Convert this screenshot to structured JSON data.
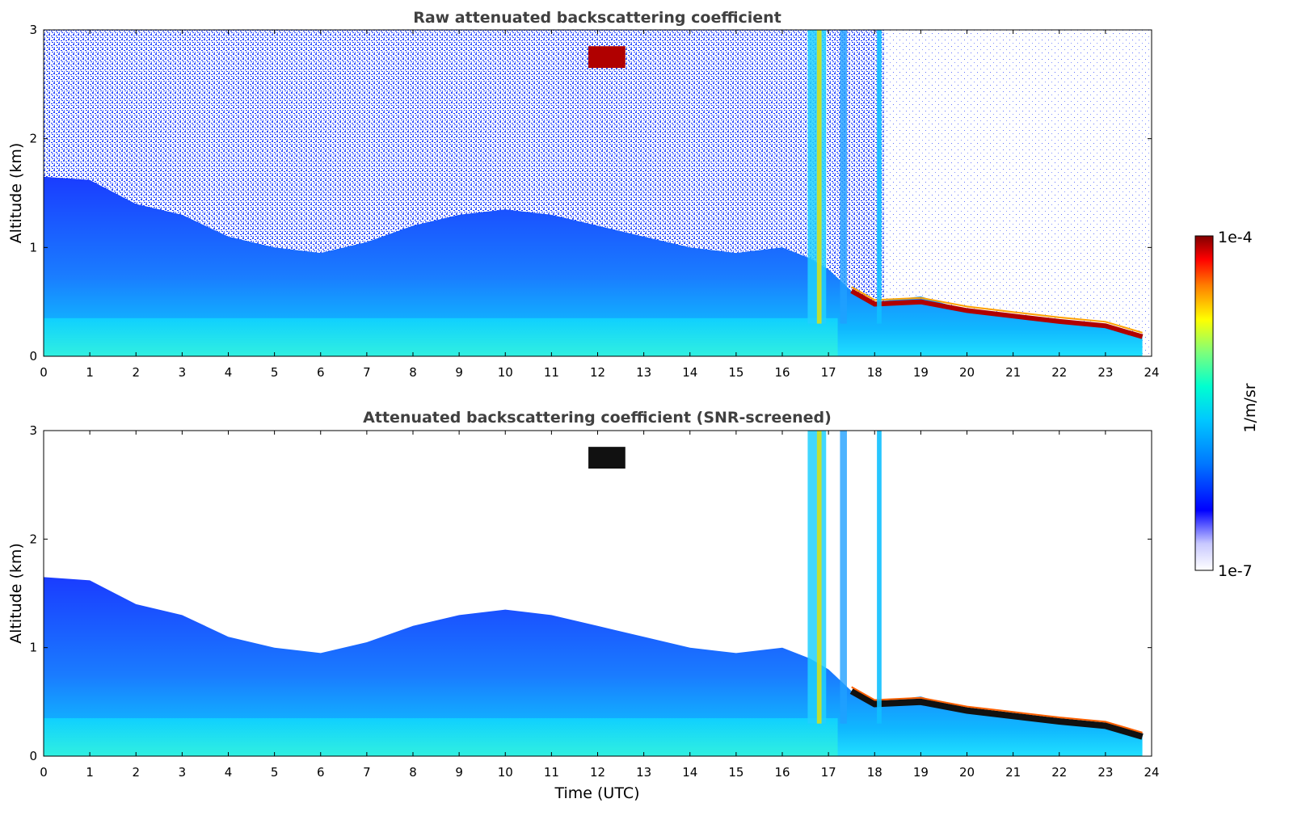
{
  "chart_data": [
    {
      "type": "heatmap",
      "title": "Raw attenuated backscattering coefficient",
      "xlabel": "",
      "ylabel": "Altitude (km)",
      "xlim": [
        0,
        24
      ],
      "ylim": [
        0,
        3
      ],
      "xticks": [
        "0",
        "1",
        "2",
        "3",
        "4",
        "5",
        "6",
        "7",
        "8",
        "9",
        "10",
        "11",
        "12",
        "13",
        "14",
        "15",
        "16",
        "17",
        "18",
        "19",
        "20",
        "21",
        "22",
        "23",
        "24"
      ],
      "yticks": [
        "0",
        "1",
        "2",
        "3"
      ],
      "boundary_layer_top_km": [
        [
          0,
          1.65
        ],
        [
          1,
          1.62
        ],
        [
          2,
          1.4
        ],
        [
          3,
          1.3
        ],
        [
          4,
          1.1
        ],
        [
          5,
          1.0
        ],
        [
          6,
          0.95
        ],
        [
          7,
          1.05
        ],
        [
          8,
          1.2
        ],
        [
          9,
          1.3
        ],
        [
          10,
          1.35
        ],
        [
          11,
          1.3
        ],
        [
          12,
          1.2
        ],
        [
          13,
          1.1
        ],
        [
          14,
          1.0
        ],
        [
          15,
          0.95
        ],
        [
          16,
          1.0
        ],
        [
          16.6,
          0.9
        ],
        [
          17,
          0.8
        ],
        [
          17.5,
          0.6
        ],
        [
          18,
          0.5
        ],
        [
          19,
          0.55
        ],
        [
          20,
          0.42
        ],
        [
          21,
          0.38
        ],
        [
          22,
          0.33
        ],
        [
          23,
          0.3
        ],
        [
          23.8,
          0.2
        ]
      ],
      "cloud_layer_km": [
        [
          17.5,
          0.6
        ],
        [
          18,
          0.48
        ],
        [
          19,
          0.5
        ],
        [
          20,
          0.42
        ],
        [
          21,
          0.37
        ],
        [
          22,
          0.32
        ],
        [
          23,
          0.28
        ],
        [
          23.8,
          0.18
        ]
      ]
    },
    {
      "type": "heatmap",
      "title": "Attenuated backscattering coefficient (SNR-screened)",
      "xlabel": "Time (UTC)",
      "ylabel": "Altitude (km)",
      "xlim": [
        0,
        24
      ],
      "ylim": [
        0,
        3
      ],
      "xticks": [
        "0",
        "1",
        "2",
        "3",
        "4",
        "5",
        "6",
        "7",
        "8",
        "9",
        "10",
        "11",
        "12",
        "13",
        "14",
        "15",
        "16",
        "17",
        "18",
        "19",
        "20",
        "21",
        "22",
        "23",
        "24"
      ],
      "yticks": [
        "0",
        "1",
        "2",
        "3"
      ],
      "boundary_layer_top_km": [
        [
          0,
          1.65
        ],
        [
          1,
          1.62
        ],
        [
          2,
          1.4
        ],
        [
          3,
          1.3
        ],
        [
          4,
          1.1
        ],
        [
          5,
          1.0
        ],
        [
          6,
          0.95
        ],
        [
          7,
          1.05
        ],
        [
          8,
          1.2
        ],
        [
          9,
          1.3
        ],
        [
          10,
          1.35
        ],
        [
          11,
          1.3
        ],
        [
          12,
          1.2
        ],
        [
          13,
          1.1
        ],
        [
          14,
          1.0
        ],
        [
          15,
          0.95
        ],
        [
          16,
          1.0
        ],
        [
          16.6,
          0.9
        ],
        [
          17,
          0.8
        ],
        [
          17.5,
          0.6
        ],
        [
          18,
          0.5
        ],
        [
          19,
          0.55
        ],
        [
          20,
          0.42
        ],
        [
          21,
          0.38
        ],
        [
          22,
          0.33
        ],
        [
          23,
          0.3
        ],
        [
          23.8,
          0.2
        ]
      ],
      "cloud_layer_km": [
        [
          17.5,
          0.6
        ],
        [
          18,
          0.48
        ],
        [
          19,
          0.5
        ],
        [
          20,
          0.42
        ],
        [
          21,
          0.37
        ],
        [
          22,
          0.32
        ],
        [
          23,
          0.28
        ],
        [
          23.8,
          0.18
        ]
      ]
    }
  ],
  "colorbar": {
    "label": "1/m/sr",
    "min_label": "1e-7",
    "max_label": "1e-4",
    "scale": "log",
    "colors": [
      "#ffffff",
      "#c8c8ff",
      "#0000ff",
      "#0078ff",
      "#00c8ff",
      "#00ffd0",
      "#7cff7c",
      "#ffff00",
      "#ff8000",
      "#ff0000",
      "#800000"
    ]
  }
}
